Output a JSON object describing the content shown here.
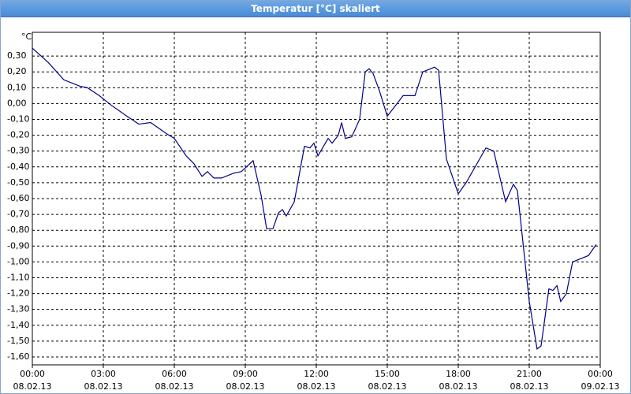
{
  "chart_data": {
    "type": "line",
    "title": "Temperatur [°C] skaliert",
    "y_unit": "°C",
    "x": [
      0,
      0.67,
      1.33,
      2.0,
      2.33,
      2.83,
      3.33,
      4.0,
      4.5,
      5.0,
      5.67,
      6.0,
      6.5,
      6.83,
      7.17,
      7.4,
      7.67,
      8.0,
      8.5,
      8.83,
      9.33,
      9.67,
      9.9,
      10.17,
      10.4,
      10.57,
      10.73,
      11.07,
      11.5,
      11.73,
      11.9,
      12.07,
      12.5,
      12.67,
      12.93,
      13.07,
      13.23,
      13.5,
      13.83,
      14.07,
      14.23,
      14.4,
      14.67,
      15.0,
      15.67,
      16.17,
      16.5,
      17.0,
      17.17,
      17.5,
      18.0,
      18.33,
      19.17,
      19.5,
      20.0,
      20.33,
      20.5,
      21.0,
      21.33,
      21.5,
      21.83,
      22.0,
      22.17,
      22.33,
      22.57,
      22.83,
      23.5,
      23.83
    ],
    "series": [
      {
        "color": "#00008b",
        "values": [
          0.35,
          0.26,
          0.15,
          0.11,
          0.1,
          0.05,
          -0.01,
          -0.08,
          -0.13,
          -0.12,
          -0.19,
          -0.22,
          -0.33,
          -0.38,
          -0.46,
          -0.43,
          -0.47,
          -0.47,
          -0.44,
          -0.43,
          -0.36,
          -0.58,
          -0.79,
          -0.79,
          -0.69,
          -0.67,
          -0.71,
          -0.62,
          -0.27,
          -0.28,
          -0.25,
          -0.33,
          -0.22,
          -0.25,
          -0.2,
          -0.12,
          -0.22,
          -0.21,
          -0.1,
          0.2,
          0.22,
          0.19,
          0.08,
          -0.08,
          0.05,
          0.05,
          0.2,
          0.23,
          0.21,
          -0.35,
          -0.57,
          -0.5,
          -0.28,
          -0.3,
          -0.62,
          -0.51,
          -0.55,
          -1.25,
          -1.55,
          -1.53,
          -1.17,
          -1.18,
          -1.15,
          -1.25,
          -1.2,
          -1.0,
          -0.96,
          -0.89
        ]
      }
    ],
    "xlim": [
      0,
      24
    ],
    "ylim": [
      -1.65,
      0.45
    ],
    "xticks": [
      {
        "value": 0,
        "label": "00:00"
      },
      {
        "value": 3,
        "label": "03:00"
      },
      {
        "value": 6,
        "label": "06:00"
      },
      {
        "value": 9,
        "label": "09:00"
      },
      {
        "value": 12,
        "label": "12:00"
      },
      {
        "value": 15,
        "label": "15:00"
      },
      {
        "value": 18,
        "label": "18:00"
      },
      {
        "value": 21,
        "label": "21:00"
      },
      {
        "value": 24,
        "label": "00:00"
      }
    ],
    "xtick_dates": [
      "08.02.13",
      "08.02.13",
      "08.02.13",
      "08.02.13",
      "08.02.13",
      "08.02.13",
      "08.02.13",
      "08.02.13",
      "09.02.13"
    ],
    "yticks": [
      {
        "value": 0.3,
        "label": "0,30"
      },
      {
        "value": 0.2,
        "label": "0,20"
      },
      {
        "value": 0.1,
        "label": "0,10"
      },
      {
        "value": 0,
        "label": "0,00"
      },
      {
        "value": -0.1,
        "label": "-0,10"
      },
      {
        "value": -0.2,
        "label": "-0,20"
      },
      {
        "value": -0.3,
        "label": "-0,30"
      },
      {
        "value": -0.4,
        "label": "-0,40"
      },
      {
        "value": -0.5,
        "label": "-0,50"
      },
      {
        "value": -0.6,
        "label": "-0,60"
      },
      {
        "value": -0.7,
        "label": "-0,70"
      },
      {
        "value": -0.8,
        "label": "-0,80"
      },
      {
        "value": -0.9,
        "label": "-0,90"
      },
      {
        "value": -1.0,
        "label": "-1,00"
      },
      {
        "value": -1.1,
        "label": "-1,10"
      },
      {
        "value": -1.2,
        "label": "-1,20"
      },
      {
        "value": -1.3,
        "label": "-1,30"
      },
      {
        "value": -1.4,
        "label": "-1,40"
      },
      {
        "value": -1.5,
        "label": "-1,50"
      },
      {
        "value": -1.6,
        "label": "-1,60"
      }
    ],
    "grid": true
  }
}
